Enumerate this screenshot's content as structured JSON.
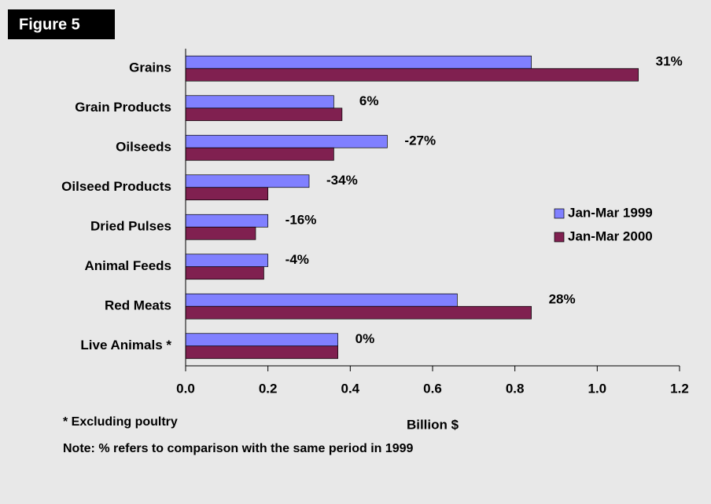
{
  "figure_label": "Figure 5",
  "chart_data": {
    "type": "hbar",
    "categories": [
      "Grains",
      "Grain Products",
      "Oilseeds",
      "Oilseed Products",
      "Dried Pulses",
      "Animal Feeds",
      "Red Meats",
      "Live Animals *"
    ],
    "series": [
      {
        "name": "Jan-Mar 1999",
        "color": "#8080ff",
        "values": [
          0.84,
          0.36,
          0.49,
          0.3,
          0.2,
          0.2,
          0.66,
          0.37
        ]
      },
      {
        "name": "Jan-Mar 2000",
        "color": "#802050",
        "values": [
          1.1,
          0.38,
          0.36,
          0.2,
          0.17,
          0.19,
          0.84,
          0.37
        ]
      }
    ],
    "change_labels": [
      "31%",
      "6%",
      "-27%",
      "-34%",
      "-16%",
      "-4%",
      "28%",
      "0%"
    ],
    "xlabel": "Billion $",
    "xlim": [
      0,
      1.2
    ],
    "xticks": [
      {
        "value": 0,
        "label": "0.0"
      },
      {
        "value": 0.2,
        "label": "0.2"
      },
      {
        "value": 0.4,
        "label": "0.4"
      },
      {
        "value": 0.6,
        "label": "0.6"
      },
      {
        "value": 0.8,
        "label": "0.8"
      },
      {
        "value": 1.0,
        "label": "1.0"
      },
      {
        "value": 1.2,
        "label": "1.2"
      }
    ],
    "legend": "right",
    "notes": [
      "* Excluding poultry",
      "Note: % refers to comparison with the same period in 1999"
    ]
  }
}
